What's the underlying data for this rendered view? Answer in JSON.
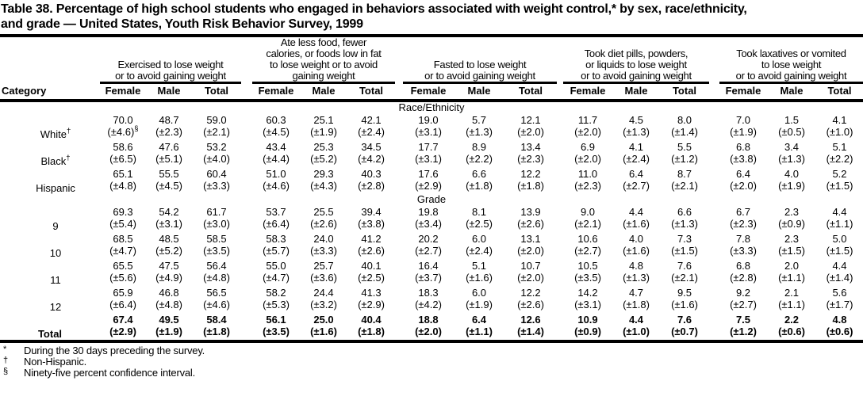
{
  "page": {
    "title_lines": [
      "Table 38. Percentage of high school students who engaged in behaviors associated with weight control,* by sex, race/ethnicity,",
      "and grade — United States, Youth Risk Behavior Survey, 1999"
    ]
  },
  "table": {
    "category_header": "Category",
    "sub_headers": [
      "Female",
      "Male",
      "Total"
    ],
    "column_groups": [
      {
        "lines": [
          "Exercised to lose weight",
          "or to avoid gaining weight"
        ]
      },
      {
        "lines": [
          "Ate less food, fewer",
          "calories, or foods low in fat",
          "to lose weight or to avoid",
          "gaining weight"
        ]
      },
      {
        "lines": [
          "Fasted to lose weight",
          "or to avoid gaining weight"
        ]
      },
      {
        "lines": [
          "Took diet pills, powders,",
          "or liquids to lose weight",
          "or to avoid gaining weight"
        ]
      },
      {
        "lines": [
          "Took laxatives or vomited",
          "to lose weight",
          "or to avoid gaining weight"
        ]
      }
    ],
    "sections": [
      {
        "heading": "Race/Ethnicity",
        "rows": [
          {
            "label": "White",
            "label_sup": "†",
            "values": [
              "70.0",
              "48.7",
              "59.0",
              "60.3",
              "25.1",
              "42.1",
              "19.0",
              "5.7",
              "12.1",
              "11.7",
              "4.5",
              "8.0",
              "7.0",
              "1.5",
              "4.1"
            ],
            "cis": [
              "(±4.6)",
              "(±2.3)",
              "(±2.1)",
              "(±4.5)",
              "(±1.9)",
              "(±2.4)",
              "(±3.1)",
              "(±1.3)",
              "(±2.0)",
              "(±2.0)",
              "(±1.3)",
              "(±1.4)",
              "(±1.9)",
              "(±0.5)",
              "(±1.0)"
            ],
            "ci_sups": {
              "0": "§"
            }
          },
          {
            "label": "Black",
            "label_sup": "†",
            "values": [
              "58.6",
              "47.6",
              "53.2",
              "43.4",
              "25.3",
              "34.5",
              "17.7",
              "8.9",
              "13.4",
              "6.9",
              "4.1",
              "5.5",
              "6.8",
              "3.4",
              "5.1"
            ],
            "cis": [
              "(±6.5)",
              "(±5.1)",
              "(±4.0)",
              "(±4.4)",
              "(±5.2)",
              "(±4.2)",
              "(±3.1)",
              "(±2.2)",
              "(±2.3)",
              "(±2.0)",
              "(±2.4)",
              "(±1.2)",
              "(±3.8)",
              "(±1.3)",
              "(±2.2)"
            ]
          },
          {
            "label": "Hispanic",
            "values": [
              "65.1",
              "55.5",
              "60.4",
              "51.0",
              "29.3",
              "40.3",
              "17.6",
              "6.6",
              "12.2",
              "11.0",
              "6.4",
              "8.7",
              "6.4",
              "4.0",
              "5.2"
            ],
            "cis": [
              "(±4.8)",
              "(±4.5)",
              "(±3.3)",
              "(±4.6)",
              "(±4.3)",
              "(±2.8)",
              "(±2.9)",
              "(±1.8)",
              "(±1.8)",
              "(±2.3)",
              "(±2.7)",
              "(±2.1)",
              "(±2.0)",
              "(±1.9)",
              "(±1.5)"
            ]
          }
        ]
      },
      {
        "heading": "Grade",
        "rows": [
          {
            "label": "9",
            "values": [
              "69.3",
              "54.2",
              "61.7",
              "53.7",
              "25.5",
              "39.4",
              "19.8",
              "8.1",
              "13.9",
              "9.0",
              "4.4",
              "6.6",
              "6.7",
              "2.3",
              "4.4"
            ],
            "cis": [
              "(±5.4)",
              "(±3.1)",
              "(±3.0)",
              "(±6.4)",
              "(±2.6)",
              "(±3.8)",
              "(±3.4)",
              "(±2.5)",
              "(±2.6)",
              "(±2.1)",
              "(±1.6)",
              "(±1.3)",
              "(±2.3)",
              "(±0.9)",
              "(±1.1)"
            ]
          },
          {
            "label": "10",
            "values": [
              "68.5",
              "48.5",
              "58.5",
              "58.3",
              "24.0",
              "41.2",
              "20.2",
              "6.0",
              "13.1",
              "10.6",
              "4.0",
              "7.3",
              "7.8",
              "2.3",
              "5.0"
            ],
            "cis": [
              "(±4.7)",
              "(±5.2)",
              "(±3.5)",
              "(±5.7)",
              "(±3.3)",
              "(±2.6)",
              "(±2.7)",
              "(±2.4)",
              "(±2.0)",
              "(±2.7)",
              "(±1.6)",
              "(±1.5)",
              "(±3.3)",
              "(±1.5)",
              "(±1.5)"
            ]
          },
          {
            "label": "11",
            "values": [
              "65.5",
              "47.5",
              "56.4",
              "55.0",
              "25.7",
              "40.1",
              "16.4",
              "5.1",
              "10.7",
              "10.5",
              "4.8",
              "7.6",
              "6.8",
              "2.0",
              "4.4"
            ],
            "cis": [
              "(±5.6)",
              "(±4.9)",
              "(±4.8)",
              "(±4.7)",
              "(±3.6)",
              "(±2.5)",
              "(±3.7)",
              "(±1.6)",
              "(±2.0)",
              "(±3.5)",
              "(±1.3)",
              "(±2.1)",
              "(±2.8)",
              "(±1.1)",
              "(±1.4)"
            ]
          },
          {
            "label": "12",
            "values": [
              "65.9",
              "46.8",
              "56.5",
              "58.2",
              "24.4",
              "41.3",
              "18.3",
              "6.0",
              "12.2",
              "14.2",
              "4.7",
              "9.5",
              "9.2",
              "2.1",
              "5.6"
            ],
            "cis": [
              "(±6.4)",
              "(±4.8)",
              "(±4.6)",
              "(±5.3)",
              "(±3.2)",
              "(±2.9)",
              "(±4.2)",
              "(±1.9)",
              "(±2.6)",
              "(±3.1)",
              "(±1.8)",
              "(±1.6)",
              "(±2.7)",
              "(±1.1)",
              "(±1.7)"
            ]
          }
        ]
      }
    ],
    "total_row": {
      "label": "Total",
      "values": [
        "67.4",
        "49.5",
        "58.4",
        "56.1",
        "25.0",
        "40.4",
        "18.8",
        "6.4",
        "12.6",
        "10.9",
        "4.4",
        "7.6",
        "7.5",
        "2.2",
        "4.8"
      ],
      "cis": [
        "(±2.9)",
        "(±1.9)",
        "(±1.8)",
        "(±3.5)",
        "(±1.6)",
        "(±1.8)",
        "(±2.0)",
        "(±1.1)",
        "(±1.4)",
        "(±0.9)",
        "(±1.0)",
        "(±0.7)",
        "(±1.2)",
        "(±0.6)",
        "(±0.6)"
      ]
    },
    "footnotes": [
      {
        "marker": "*",
        "text": "During the 30 days preceding the survey."
      },
      {
        "marker": "†",
        "text": "Non-Hispanic."
      },
      {
        "marker": "§",
        "text": "Ninety-five percent confidence interval."
      }
    ]
  }
}
